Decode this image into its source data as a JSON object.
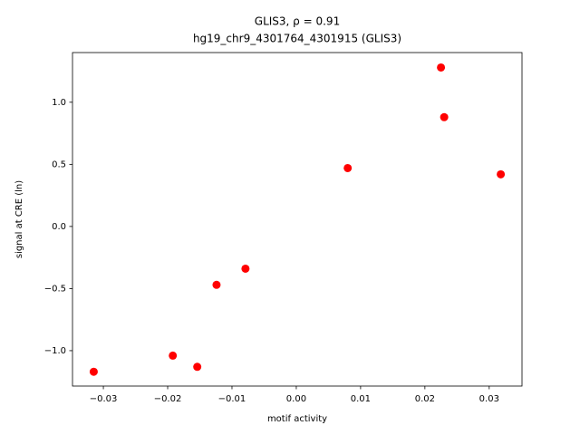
{
  "chart_data": {
    "type": "scatter",
    "title": "GLIS3, ρ = 0.91",
    "subtitle": "hg19_chr9_4301764_4301915 (GLIS3)",
    "x_label": "motif activity",
    "y_label": "signal at CRE (ln)",
    "series": [
      {
        "color": "#ff0000",
        "x": [
          -0.0315,
          -0.0192,
          -0.0154,
          -0.0124,
          -0.0079,
          0.008,
          0.0225,
          0.023,
          0.0318
        ],
        "values": [
          -1.17,
          -1.04,
          -1.13,
          -0.47,
          -0.34,
          0.47,
          1.28,
          0.88,
          0.42
        ]
      }
    ],
    "xlim": [
      -0.0348,
      0.0351
    ],
    "xticks": [
      {
        "value": -0.03,
        "label": "−0.03"
      },
      {
        "value": -0.02,
        "label": "−0.02"
      },
      {
        "value": -0.01,
        "label": "−0.01"
      },
      {
        "value": 0,
        "label": "0.00"
      },
      0.01,
      0.02,
      0.03
    ],
    "ylim": [
      -1.285,
      1.4
    ],
    "yticks": [
      {
        "value": -1,
        "label": "−1.0"
      },
      {
        "value": -0.5,
        "label": "−0.5"
      },
      {
        "value": 0,
        "label": "0.0"
      },
      0.5,
      {
        "value": 1,
        "label": "1.0"
      }
    ],
    "grid": false
  }
}
